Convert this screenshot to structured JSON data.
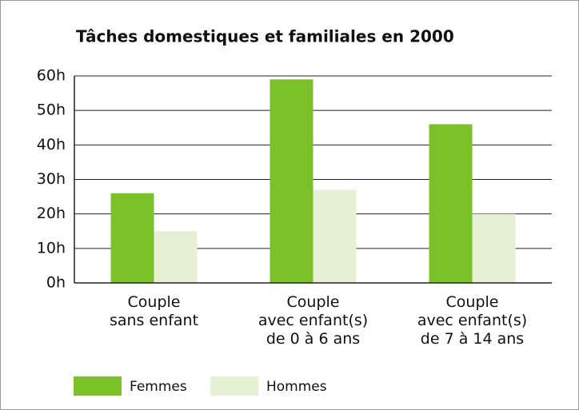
{
  "chart_data": {
    "type": "bar",
    "title": "Tâches domestiques et familiales en 2000",
    "categories": [
      "Couple\nsans enfant",
      "Couple\navec enfant(s)\nde 0 à 6 ans",
      "Couple\navec enfant(s)\nde 7 à 14 ans"
    ],
    "series": [
      {
        "name": "Femmes",
        "color": "#7dc12a",
        "values": [
          26,
          59,
          46
        ]
      },
      {
        "name": "Hommes",
        "color": "#e6f0d4",
        "values": [
          15,
          27,
          20
        ]
      }
    ],
    "ylim": [
      0,
      60
    ],
    "yticks": [
      {
        "value": 0,
        "label": "0h"
      },
      {
        "value": 10,
        "label": "10h"
      },
      {
        "value": 20,
        "label": "20h"
      },
      {
        "value": 30,
        "label": "30h"
      },
      {
        "value": 40,
        "label": "40h"
      },
      {
        "value": 50,
        "label": "50h"
      },
      {
        "value": 60,
        "label": "60h"
      }
    ],
    "grid": true
  }
}
